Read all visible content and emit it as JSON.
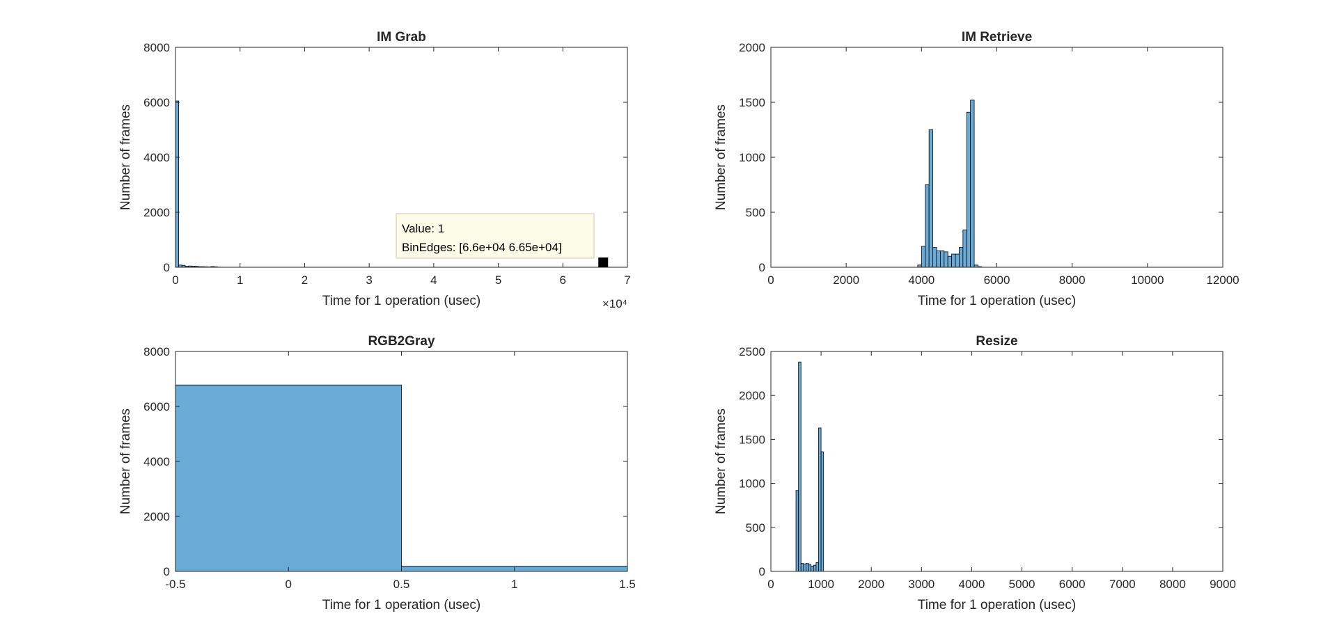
{
  "figure": {
    "bar_fill": "#6aaad6",
    "bar_edge": "#000000",
    "axis_color": "#262626",
    "background": "#ffffff"
  },
  "chart_data": [
    {
      "type": "bar",
      "title": "IM Grab",
      "xlabel": "Time for 1 operation (usec)",
      "ylabel": "Number of frames",
      "xlim": [
        0,
        70000
      ],
      "ylim": [
        0,
        8000
      ],
      "xticks": [
        0,
        10000,
        20000,
        30000,
        40000,
        50000,
        60000,
        70000
      ],
      "xtick_labels": [
        "0",
        "1",
        "2",
        "3",
        "4",
        "5",
        "6",
        "7"
      ],
      "yticks": [
        0,
        2000,
        4000,
        6000,
        8000
      ],
      "ytick_labels": [
        "0",
        "2000",
        "4000",
        "6000",
        "8000"
      ],
      "x_exponent_label": "×10⁴",
      "bin_edges": [
        0,
        500,
        1000,
        1500,
        2000,
        2500,
        3000,
        3500,
        4000,
        4500,
        5000,
        5500,
        6000,
        6500,
        7000,
        66000,
        66500
      ],
      "values": [
        6050,
        80,
        70,
        40,
        45,
        40,
        35,
        20,
        20,
        15,
        10,
        25,
        15,
        5,
        0,
        1
      ],
      "datatip": {
        "value_line": "Value: 1",
        "binedges_line": "BinEdges: [6.6e+04 6.65e+04]",
        "value": 1,
        "bin_edges": [
          66000,
          66500
        ]
      }
    },
    {
      "type": "bar",
      "title": "IM Retrieve",
      "xlabel": "Time for 1 operation (usec)",
      "ylabel": "Number of frames",
      "xlim": [
        0,
        12000
      ],
      "ylim": [
        0,
        2000
      ],
      "xticks": [
        0,
        2000,
        4000,
        6000,
        8000,
        10000,
        12000
      ],
      "xtick_labels": [
        "0",
        "2000",
        "4000",
        "6000",
        "8000",
        "10000",
        "12000"
      ],
      "yticks": [
        0,
        500,
        1000,
        1500,
        2000
      ],
      "ytick_labels": [
        "0",
        "500",
        "1000",
        "1500",
        "2000"
      ],
      "bin_edges": [
        3900,
        4000,
        4100,
        4200,
        4300,
        4400,
        4500,
        4600,
        4700,
        4800,
        4900,
        5000,
        5100,
        5200,
        5300,
        5400,
        5500,
        5600
      ],
      "values": [
        20,
        190,
        750,
        1250,
        180,
        150,
        150,
        140,
        100,
        120,
        120,
        180,
        340,
        1410,
        1520,
        20,
        5
      ]
    },
    {
      "type": "bar",
      "title": "RGB2Gray",
      "xlabel": "Time for 1 operation (usec)",
      "ylabel": "Number of frames",
      "xlim": [
        -0.5,
        1.5
      ],
      "ylim": [
        0,
        8000
      ],
      "xticks": [
        -0.5,
        0,
        0.5,
        1,
        1.5
      ],
      "xtick_labels": [
        "-0.5",
        "0",
        "0.5",
        "1",
        "1.5"
      ],
      "yticks": [
        0,
        2000,
        4000,
        6000,
        8000
      ],
      "ytick_labels": [
        "0",
        "2000",
        "4000",
        "6000",
        "8000"
      ],
      "bin_edges": [
        -0.5,
        0.5,
        1.5
      ],
      "values": [
        6780,
        190
      ]
    },
    {
      "type": "bar",
      "title": "Resize",
      "xlabel": "Time for 1 operation (usec)",
      "ylabel": "Number of frames",
      "xlim": [
        0,
        9000
      ],
      "ylim": [
        0,
        2500
      ],
      "xticks": [
        0,
        1000,
        2000,
        3000,
        4000,
        5000,
        6000,
        7000,
        8000,
        9000
      ],
      "xtick_labels": [
        "0",
        "1000",
        "2000",
        "3000",
        "4000",
        "5000",
        "6000",
        "7000",
        "8000",
        "9000"
      ],
      "yticks": [
        0,
        500,
        1000,
        1500,
        2000,
        2500
      ],
      "ytick_labels": [
        "0",
        "500",
        "1000",
        "1500",
        "2000",
        "2500"
      ],
      "bin_edges": [
        500,
        550,
        600,
        650,
        700,
        750,
        800,
        850,
        900,
        950,
        1000,
        1050,
        1100
      ],
      "values": [
        920,
        2380,
        90,
        85,
        90,
        80,
        60,
        70,
        100,
        1630,
        1360,
        0
      ]
    }
  ]
}
